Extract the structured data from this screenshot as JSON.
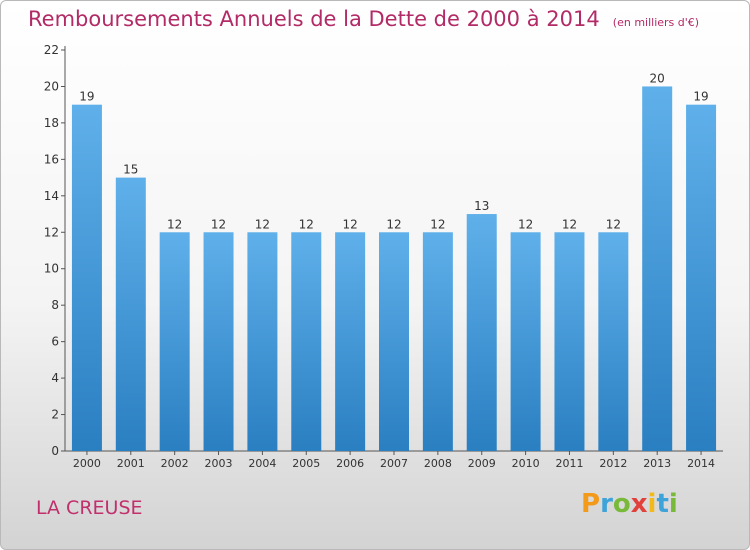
{
  "chart_data": {
    "type": "bar",
    "title": "Remboursements Annuels de la Dette de 2000 à 2014",
    "subtitle": "(en milliers d'€)",
    "categories": [
      "2000",
      "2001",
      "2002",
      "2003",
      "2004",
      "2005",
      "2006",
      "2007",
      "2008",
      "2009",
      "2010",
      "2011",
      "2012",
      "2013",
      "2014"
    ],
    "values": [
      19,
      15,
      12,
      12,
      12,
      12,
      12,
      12,
      12,
      13,
      12,
      12,
      12,
      20,
      19
    ],
    "ylim": [
      0,
      22
    ],
    "yticks": [
      0,
      2,
      4,
      6,
      8,
      10,
      12,
      14,
      16,
      18,
      20,
      22
    ],
    "grid": false,
    "bar_color": "#4a9fe0"
  },
  "footer": {
    "commune": "LA CREUSE",
    "logo": "Proxiti"
  }
}
